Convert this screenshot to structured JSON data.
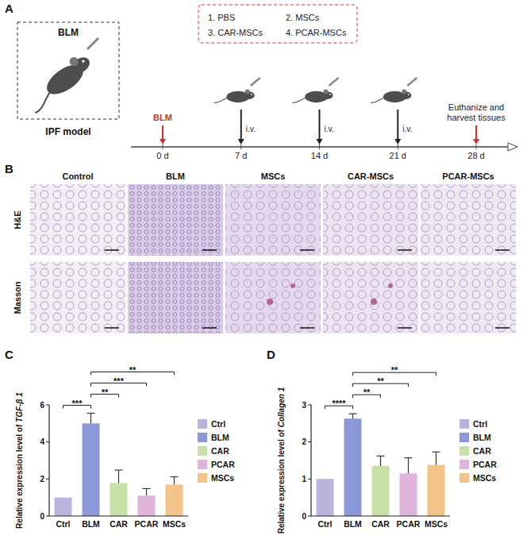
{
  "panel_labels": [
    "A",
    "B",
    "C",
    "D"
  ],
  "panel_a": {
    "model_box": "BLM",
    "model_label": "IPF model",
    "treatments": [
      "1. PBS",
      "2. MSCs",
      "3. CAR-MSCs",
      "4. PCAR-MSCs"
    ],
    "timeline": [
      {
        "value": 0,
        "label": "0 d"
      },
      {
        "value": 7,
        "label": "7 d"
      },
      {
        "value": 14,
        "label": "14 d"
      },
      {
        "value": 21,
        "label": "21 d"
      },
      {
        "value": 28,
        "label": "28 d"
      }
    ],
    "induction": {
      "day": 0,
      "label": "BLM"
    },
    "injections": {
      "days": [
        7,
        14,
        21
      ],
      "label": "i.v."
    },
    "endpoint": {
      "day": 28,
      "label": "Euthanize and harvest tissues"
    }
  },
  "panel_b": {
    "columns": [
      "Control",
      "BLM",
      "MSCs",
      "CAR-MSCs",
      "PCAR-MSCs"
    ],
    "rows": [
      "H&E",
      "Masson"
    ]
  },
  "chart_data": [
    {
      "type": "bar",
      "y_label": "Relative expression level of TGF-β 1",
      "categories": [
        "Ctrl",
        "BLM",
        "CAR",
        "PCAR",
        "MSCs"
      ],
      "values": [
        1,
        5.0,
        1.78,
        1.1,
        1.7
      ],
      "errors": [
        0,
        0.55,
        0.7,
        0.38,
        0.42
      ],
      "colors": [
        "#b9b3dd",
        "#8a98d8",
        "#c6e0a6",
        "#e0b3db",
        "#f3c38a"
      ],
      "ylim": [
        0,
        6
      ],
      "yticks": [
        0,
        2,
        4,
        6
      ],
      "legend": "right",
      "annotations": [
        {
          "between": [
            "BLM",
            "Ctrl"
          ],
          "label": "***"
        },
        {
          "between": [
            "BLM",
            "CAR"
          ],
          "label": "**"
        },
        {
          "between": [
            "BLM",
            "PCAR"
          ],
          "label": "***"
        },
        {
          "between": [
            "BLM",
            "MSCs"
          ],
          "label": "**"
        }
      ]
    },
    {
      "type": "bar",
      "y_label": "Relative expression level of Collagen 1",
      "categories": [
        "Ctrl",
        "BLM",
        "CAR",
        "PCAR",
        "MSCs"
      ],
      "values": [
        1,
        2.63,
        1.35,
        1.15,
        1.38
      ],
      "errors": [
        0,
        0.13,
        0.27,
        0.42,
        0.35
      ],
      "colors": [
        "#b9b3dd",
        "#8a98d8",
        "#c6e0a6",
        "#e0b3db",
        "#f3c38a"
      ],
      "ylim": [
        0,
        3
      ],
      "yticks": [
        0,
        1,
        2,
        3
      ],
      "legend": "right",
      "annotations": [
        {
          "between": [
            "BLM",
            "Ctrl"
          ],
          "label": "****"
        },
        {
          "between": [
            "BLM",
            "CAR"
          ],
          "label": "**"
        },
        {
          "between": [
            "BLM",
            "PCAR"
          ],
          "label": "**"
        },
        {
          "between": [
            "BLM",
            "MSCs"
          ],
          "label": "**"
        }
      ]
    }
  ]
}
